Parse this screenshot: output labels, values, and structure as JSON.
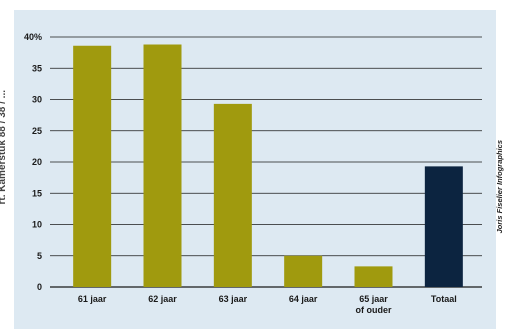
{
  "header_fragment": "",
  "left_margin_text": "rt. Kamerstuk 88 / 38 / ...",
  "credit": "Joris Fiselier Infographics",
  "colors": {
    "panel": "#dde9f2",
    "bar": "#a09a0e",
    "bar_highlight": "#0c2440",
    "grid": "#1a1a1a"
  },
  "chart_data": {
    "type": "bar",
    "title": "",
    "xlabel": "",
    "ylabel": "",
    "ylim": [
      0,
      40
    ],
    "yticks": [
      0,
      5,
      10,
      15,
      20,
      25,
      30,
      35,
      40
    ],
    "ytick_labels": [
      "0",
      "5",
      "10",
      "15",
      "20",
      "25",
      "30",
      "35",
      "40%"
    ],
    "grid": true,
    "categories": [
      [
        "61 jaar"
      ],
      [
        "62 jaar"
      ],
      [
        "63 jaar"
      ],
      [
        "64 jaar"
      ],
      [
        "65 jaar",
        "of ouder"
      ],
      [
        "Totaal"
      ]
    ],
    "values": [
      38.6,
      38.8,
      29.3,
      5.0,
      3.3,
      19.3
    ],
    "highlight_index": 5
  }
}
